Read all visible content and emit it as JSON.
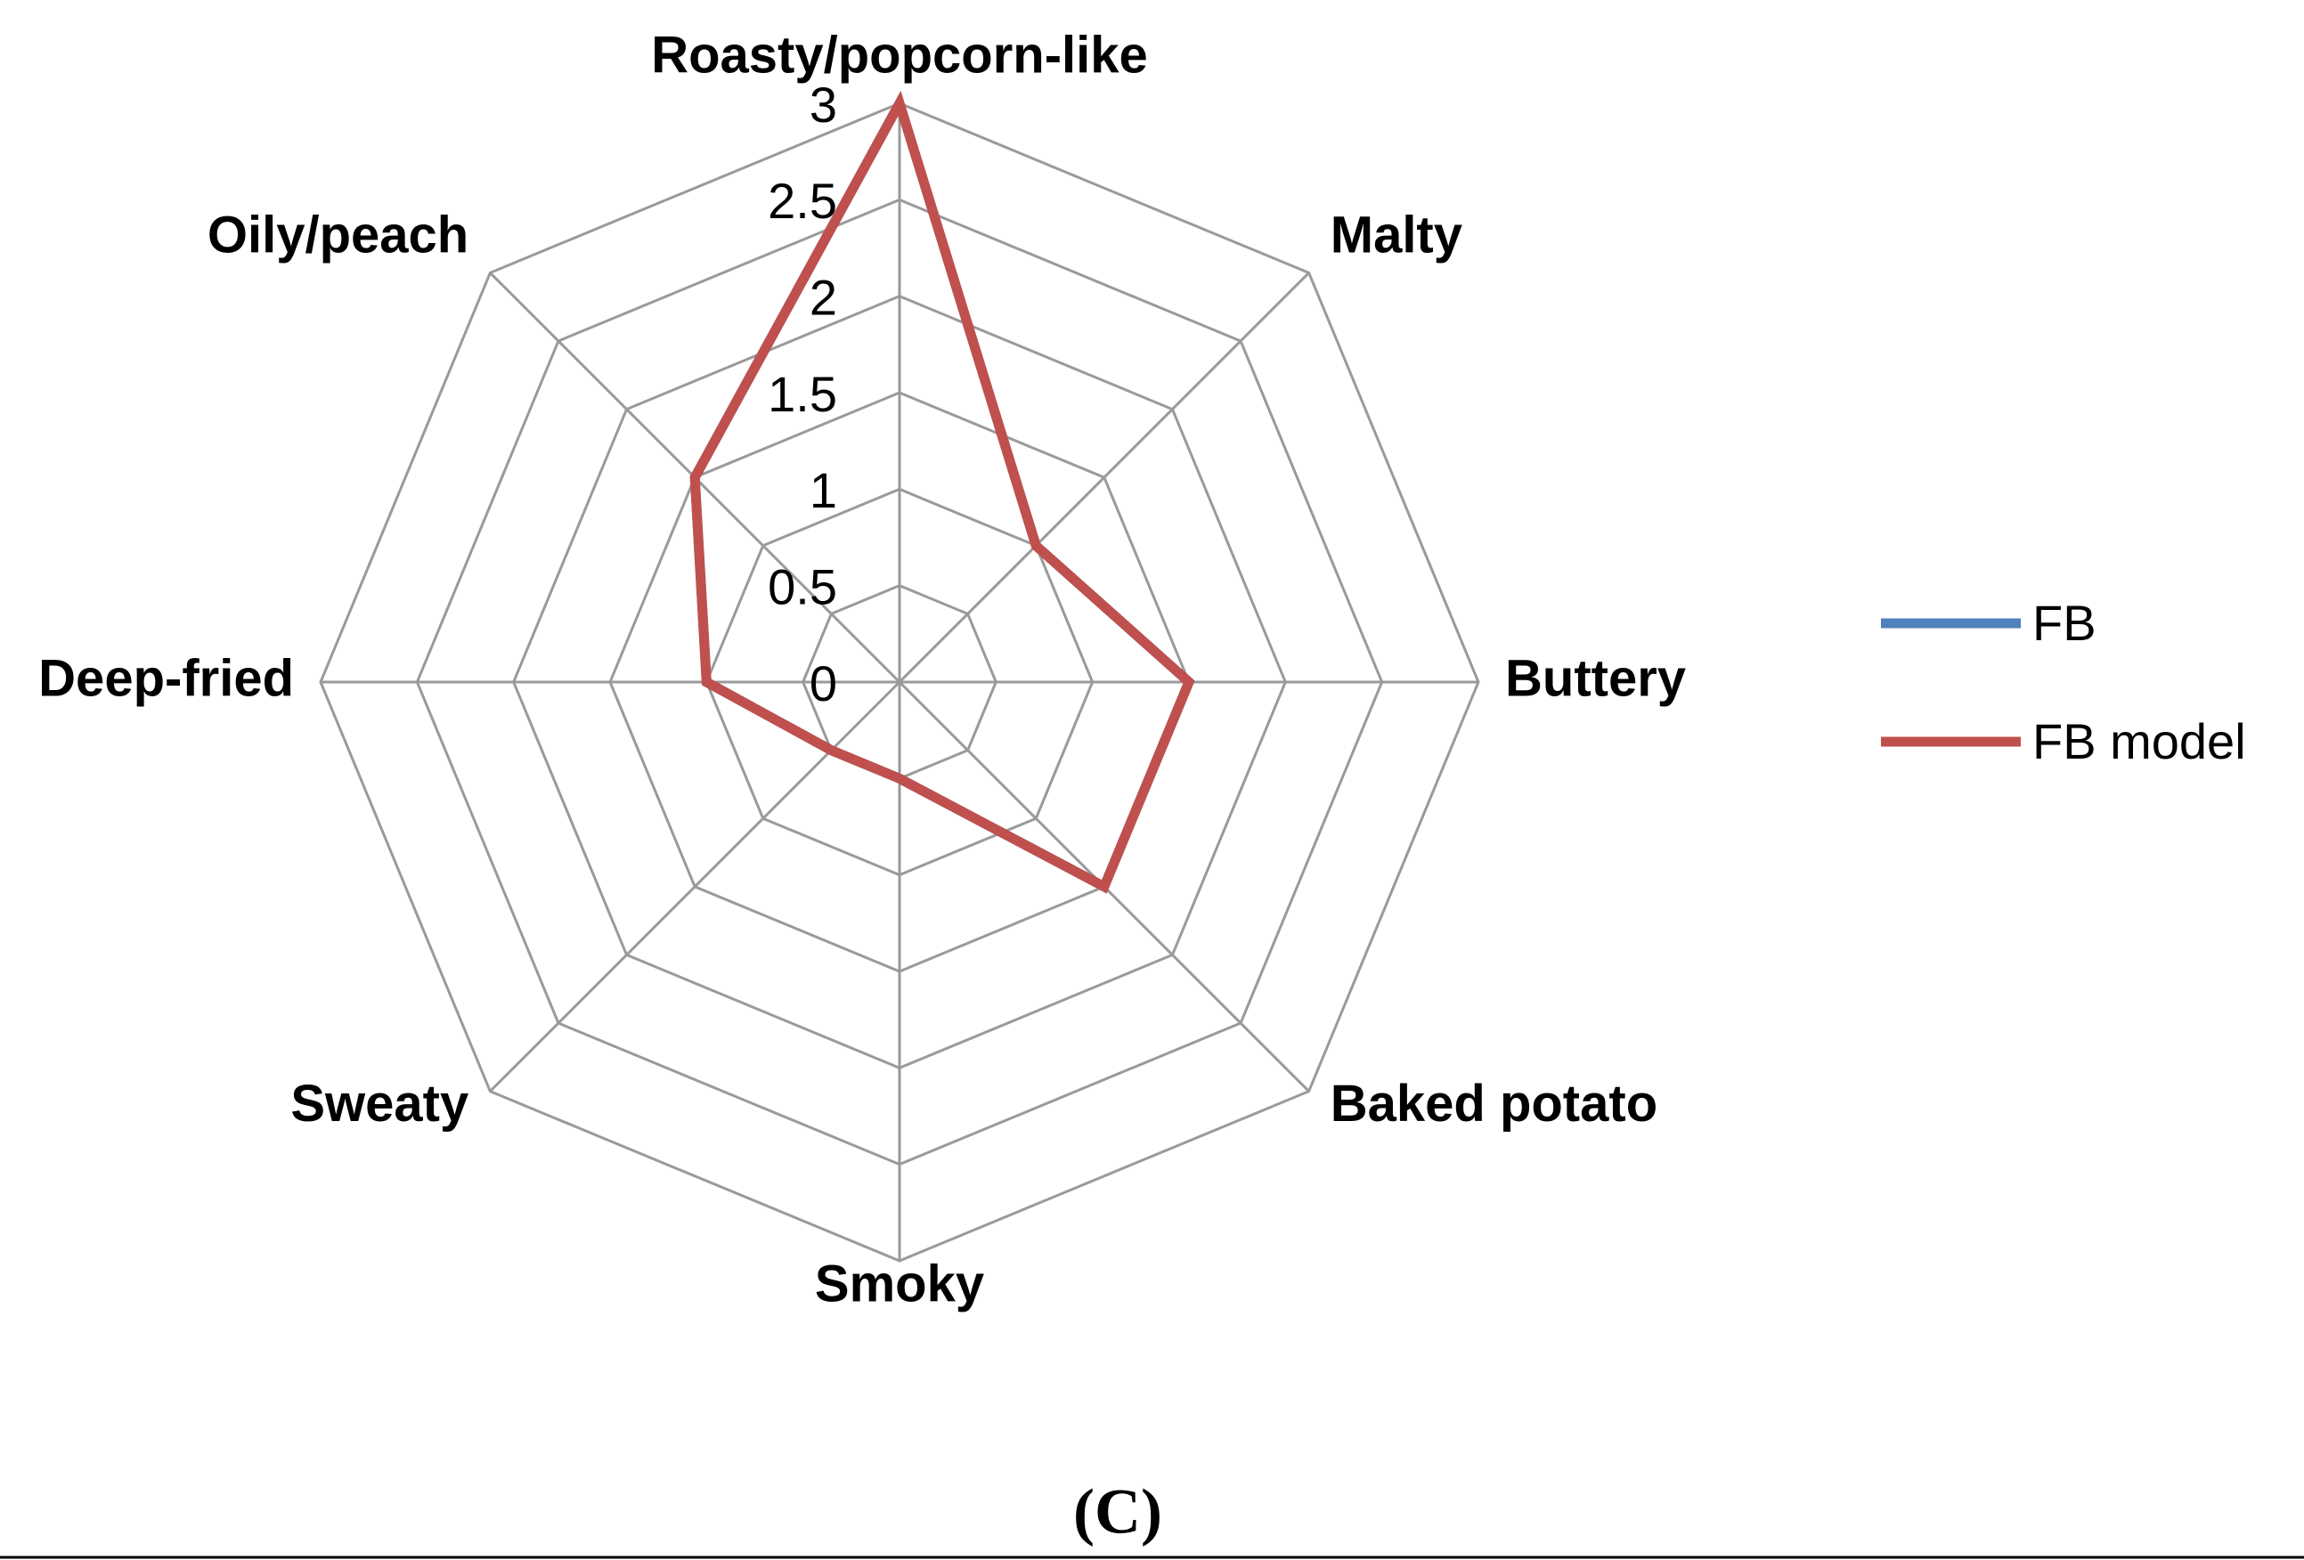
{
  "chart_data": {
    "type": "radar",
    "categories": [
      "Roasty/popcorn-like",
      "Malty",
      "Buttery",
      "Baked potato",
      "Smoky",
      "Sweaty",
      "Deep-fried",
      "Oily/peach"
    ],
    "series": [
      {
        "name": "FB",
        "color": "#4f81bd",
        "values": [
          3,
          1,
          1.5,
          1.5,
          0.5,
          0.5,
          1,
          1.5
        ]
      },
      {
        "name": "FB model",
        "color": "#c0504d",
        "values": [
          3,
          1,
          1.5,
          1.5,
          0.5,
          0.5,
          1,
          1.5
        ]
      }
    ],
    "ylim": [
      0,
      3
    ],
    "yticks": [
      0,
      0.5,
      1,
      1.5,
      2,
      2.5,
      3
    ],
    "grid": true,
    "legend": "right"
  },
  "caption": "(C)"
}
